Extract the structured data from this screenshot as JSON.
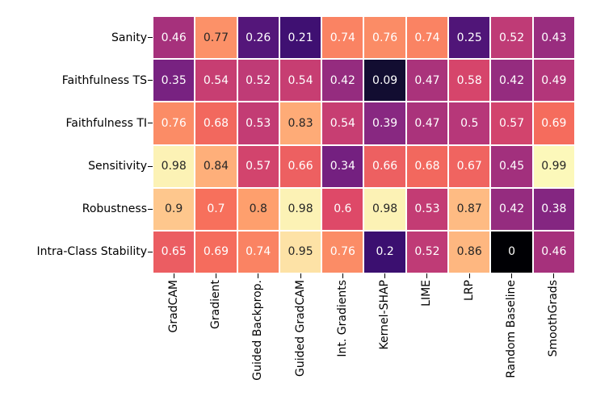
{
  "chart_data": {
    "type": "heatmap",
    "title": "",
    "xlabel": "",
    "ylabel": "",
    "rows": [
      "Sanity",
      "Faithfulness TS",
      "Faithfulness TI",
      "Sensitivity",
      "Robustness",
      "Intra-Class Stability"
    ],
    "columns": [
      "GradCAM",
      "Gradient",
      "Guided Backprop.",
      "Guided GradCAM",
      "Int. Gradients",
      "Kernel-SHAP",
      "LIME",
      "LRP",
      "Random Baseline",
      "SmoothGrads"
    ],
    "values": [
      [
        0.46,
        0.77,
        0.26,
        0.21,
        0.74,
        0.76,
        0.74,
        0.25,
        0.52,
        0.43
      ],
      [
        0.35,
        0.54,
        0.52,
        0.54,
        0.42,
        0.09,
        0.47,
        0.58,
        0.42,
        0.49
      ],
      [
        0.76,
        0.68,
        0.53,
        0.83,
        0.54,
        0.39,
        0.47,
        0.5,
        0.57,
        0.69
      ],
      [
        0.98,
        0.84,
        0.57,
        0.66,
        0.34,
        0.66,
        0.68,
        0.67,
        0.45,
        0.99
      ],
      [
        0.9,
        0.7,
        0.8,
        0.98,
        0.6,
        0.98,
        0.53,
        0.87,
        0.42,
        0.38
      ],
      [
        0.65,
        0.69,
        0.74,
        0.95,
        0.76,
        0.2,
        0.52,
        0.86,
        0,
        0.46
      ]
    ],
    "value_range": [
      0,
      1
    ],
    "annotated": true,
    "annotation_format": "up to 2 significant digits",
    "colormap": "magma",
    "colormap_anchors": [
      "#000004",
      "#140e36",
      "#3b0f70",
      "#641a80",
      "#8c2981",
      "#b73779",
      "#de4968",
      "#f7705c",
      "#fe9f6d",
      "#fec78d",
      "#fcfdbf"
    ],
    "grid_color": "#ffffff",
    "cell_text_dark": "#262626",
    "cell_text_light": "#ffffff",
    "axis_label_color": "#000000",
    "tick_color": "#000000",
    "background": "#ffffff",
    "x_tick_rotation": 90,
    "legend": "none",
    "luminance_dark_text_threshold": 0.408
  }
}
